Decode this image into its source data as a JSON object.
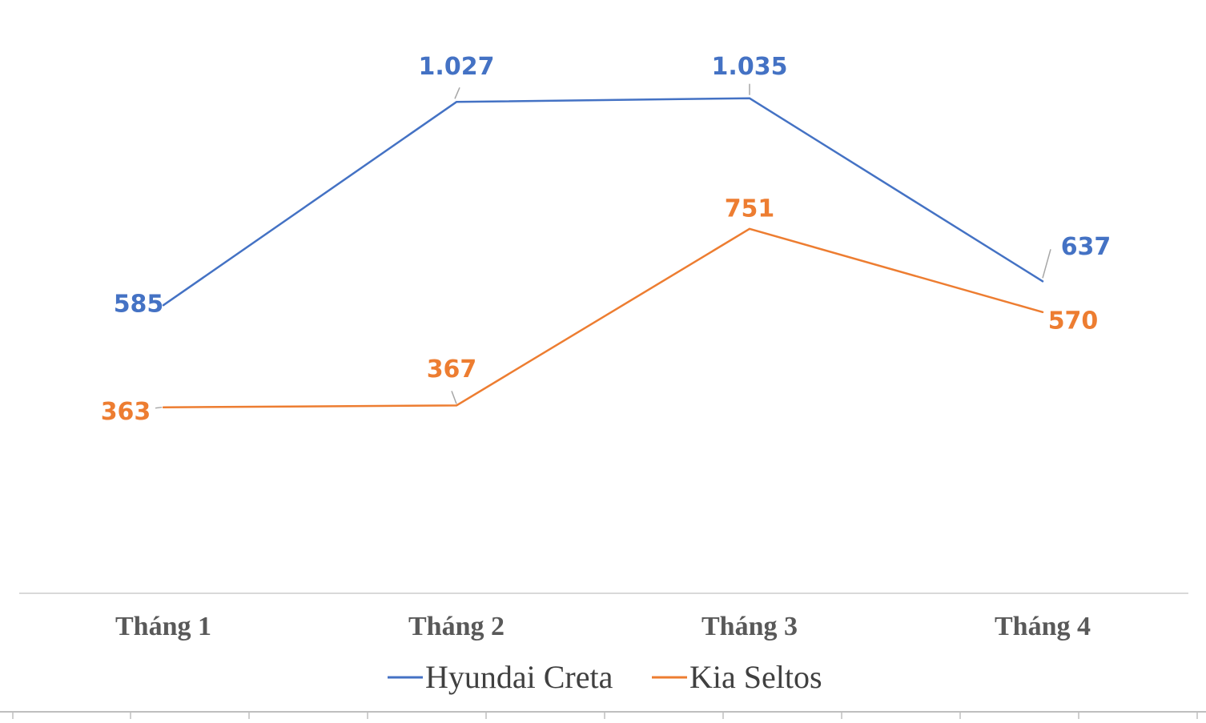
{
  "chart_data": {
    "type": "line",
    "categories": [
      "Tháng 1",
      "Tháng 2",
      "Tháng 3",
      "Tháng 4"
    ],
    "series": [
      {
        "name": "Hyundai Creta",
        "color": "#4472C4",
        "values": [
          585,
          1027,
          1035,
          637
        ],
        "labels": [
          "585",
          "1.027",
          "1.035",
          "637"
        ]
      },
      {
        "name": "Kia Seltos",
        "color": "#ED7D31",
        "values": [
          363,
          367,
          751,
          570
        ],
        "labels": [
          "363",
          "367",
          "751",
          "570"
        ]
      }
    ],
    "legend_position": "bottom",
    "grid": false,
    "y_axis_visible": false
  }
}
